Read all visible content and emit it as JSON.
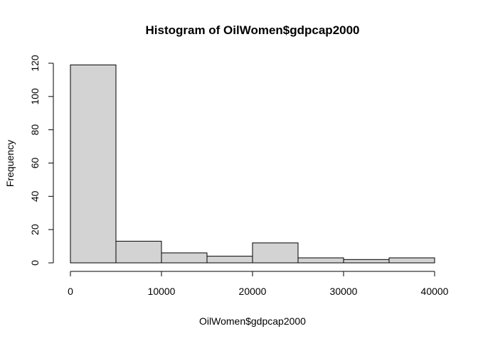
{
  "chart_data": {
    "type": "bar",
    "title": "Histogram of OilWomen$gdpcap2000",
    "xlabel": "OilWomen$gdpcap2000",
    "ylabel": "Frequency",
    "bins": [
      {
        "start": 0,
        "end": 5000,
        "count": 119
      },
      {
        "start": 5000,
        "end": 10000,
        "count": 13
      },
      {
        "start": 10000,
        "end": 15000,
        "count": 6
      },
      {
        "start": 15000,
        "end": 20000,
        "count": 4
      },
      {
        "start": 20000,
        "end": 25000,
        "count": 12
      },
      {
        "start": 25000,
        "end": 30000,
        "count": 3
      },
      {
        "start": 30000,
        "end": 35000,
        "count": 2
      },
      {
        "start": 35000,
        "end": 40000,
        "count": 3
      }
    ],
    "xlim": [
      0,
      40000
    ],
    "ylim": [
      0,
      120
    ],
    "xticks": [
      "0",
      "10000",
      "20000",
      "30000",
      "40000"
    ],
    "yticks": [
      "0",
      "20",
      "40",
      "60",
      "80",
      "100",
      "120"
    ],
    "bar_color": "#d3d3d3",
    "edge_color": "#000000",
    "grid": false,
    "legend": "none"
  }
}
